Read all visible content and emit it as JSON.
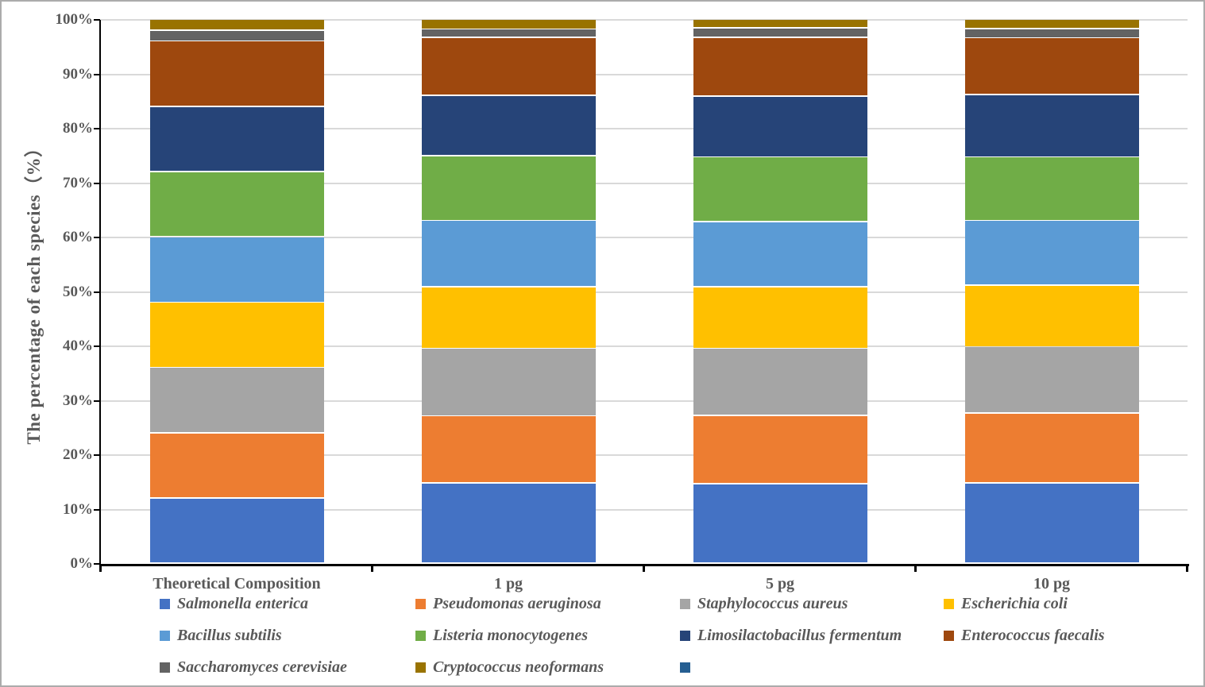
{
  "chart_data": {
    "type": "bar",
    "stacked": true,
    "orientation": "vertical",
    "title": "",
    "xlabel": "",
    "ylabel": "The percentage of each species（%）",
    "ylim": [
      0,
      100
    ],
    "ytick_labels": [
      "0%",
      "10%",
      "20%",
      "30%",
      "40%",
      "50%",
      "60%",
      "70%",
      "80%",
      "90%",
      "100%"
    ],
    "grid": true,
    "legend_position": "bottom",
    "categories": [
      "Theoretical Composition",
      "1 pg",
      "5 pg",
      "10 pg"
    ],
    "series": [
      {
        "name": "Salmonella enterica",
        "color": "#4472C4",
        "values": [
          12,
          14.8,
          14.6,
          14.8
        ]
      },
      {
        "name": "Pseudomonas aeruginosa",
        "color": "#ED7D31",
        "values": [
          12,
          12.3,
          12.6,
          12.8
        ]
      },
      {
        "name": "Staphylococcus aureus",
        "color": "#A5A5A5",
        "values": [
          12,
          12.4,
          12.3,
          12.2
        ]
      },
      {
        "name": "Escherichia coli",
        "color": "#FFC000",
        "values": [
          12,
          11.3,
          11.3,
          11.3
        ]
      },
      {
        "name": "Bacillus subtilis",
        "color": "#5B9BD5",
        "values": [
          12,
          12.2,
          12.0,
          11.9
        ]
      },
      {
        "name": "Listeria monocytogenes",
        "color": "#70AD47",
        "values": [
          12,
          11.9,
          11.9,
          11.7
        ]
      },
      {
        "name": "Limosilactobacillus fermentum",
        "color": "#264478",
        "values": [
          12,
          11.1,
          11.2,
          11.5
        ]
      },
      {
        "name": "Enterococcus faecalis",
        "color": "#9E480E",
        "values": [
          12,
          10.7,
          10.8,
          10.4
        ]
      },
      {
        "name": "Saccharomyces cerevisiae",
        "color": "#636363",
        "values": [
          2,
          1.5,
          1.7,
          1.7
        ]
      },
      {
        "name": "Cryptococcus neoformans",
        "color": "#997300",
        "values": [
          2,
          1.8,
          1.6,
          1.7
        ]
      },
      {
        "name": "",
        "color": "#255E91",
        "values": [
          0,
          0,
          0,
          0
        ]
      }
    ]
  },
  "style_colors": {
    "text": "#595959",
    "gridline": "#D9D9D9",
    "axis": "#000000",
    "canvas_border": "#ABABAB",
    "background": "#FFFFFF"
  }
}
